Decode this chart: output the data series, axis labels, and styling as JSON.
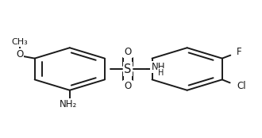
{
  "bg": "#ffffff",
  "bond_color": "#1a1a1a",
  "lw": 1.4,
  "fs": 8.5,
  "figsize": [
    3.3,
    1.74
  ],
  "dpi": 100,
  "lcx": 0.265,
  "lcy": 0.5,
  "rcx": 0.715,
  "rcy": 0.5,
  "ring_r": 0.155,
  "labels": {
    "O_ether": "O",
    "CH3": "CH₃",
    "NH2": "NH₂",
    "S": "S",
    "O_top": "O",
    "O_bot": "O",
    "NH": "NH",
    "H": "H",
    "F": "F",
    "Cl": "Cl"
  }
}
